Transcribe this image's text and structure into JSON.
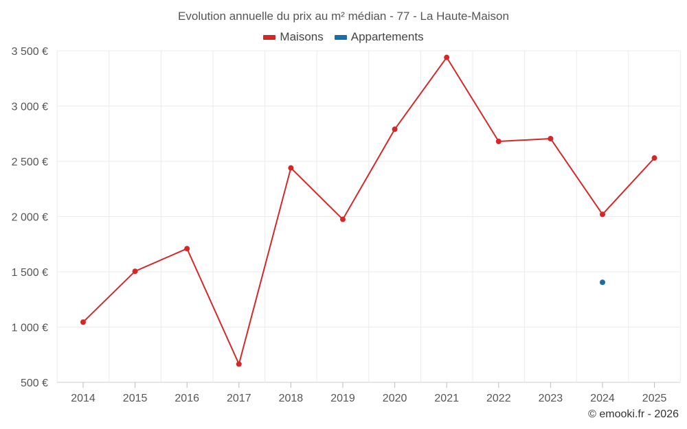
{
  "chart_data": {
    "type": "line",
    "title": "Evolution annuelle du prix au m² médian - 77 - La Haute-Maison",
    "categories": [
      "2014",
      "2015",
      "2016",
      "2017",
      "2018",
      "2019",
      "2020",
      "2021",
      "2022",
      "2023",
      "2024",
      "2025"
    ],
    "series": [
      {
        "name": "Maisons",
        "color": "#d62728",
        "values": [
          1045,
          1505,
          1710,
          665,
          2440,
          1975,
          2790,
          3440,
          2680,
          2705,
          2020,
          2530
        ]
      },
      {
        "name": "Appartements",
        "color": "#1a6ea8",
        "values": [
          null,
          null,
          null,
          null,
          null,
          null,
          null,
          null,
          null,
          null,
          1405,
          null
        ]
      }
    ],
    "y_ticks": [
      500,
      1000,
      1500,
      2000,
      2500,
      3000,
      3500
    ],
    "y_tick_labels": [
      "500 €",
      "1 000 €",
      "1 500 €",
      "2 000 €",
      "2 500 €",
      "3 000 €",
      "3 500 €"
    ],
    "ylim": [
      500,
      3500
    ],
    "grid": true,
    "legend_position": "top-center"
  },
  "credit": "© emooki.fr - 2026"
}
